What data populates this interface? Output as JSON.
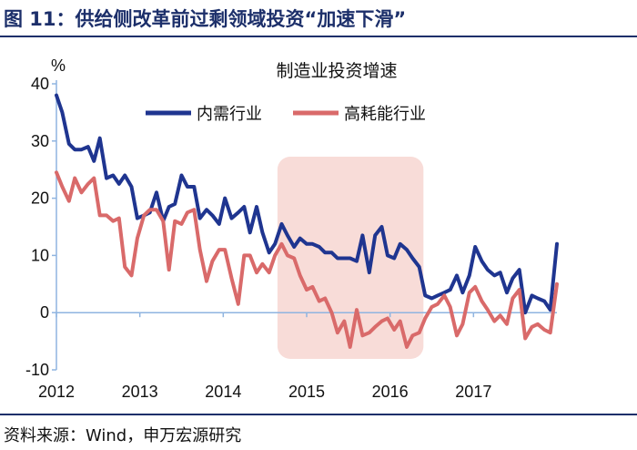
{
  "header": {
    "title": "图 11：供给侧改革前过剩领域投资“加速下滑”"
  },
  "footer": {
    "source": "资料来源：Wind，申万宏源研究"
  },
  "chart_data": {
    "type": "line",
    "title": "制造业投资增速",
    "ylabel": "%",
    "ylim": [
      -10,
      40
    ],
    "yticks": [
      -10,
      0,
      10,
      20,
      30,
      40
    ],
    "xlim": [
      2012.0,
      2018.0
    ],
    "xticks": [
      2012,
      2013,
      2014,
      2015,
      2016,
      2017
    ],
    "highlight_range": [
      2014.65,
      2016.4
    ],
    "legend_position": "top",
    "colors": {
      "series1": "#1f3590",
      "series2": "#d96a6a",
      "highlight": "#f8dcd8",
      "axis": "#8fb4e0"
    },
    "series": [
      {
        "name": "内需行业",
        "x": [
          2012.0,
          2012.07,
          2012.15,
          2012.22,
          2012.3,
          2012.38,
          2012.45,
          2012.52,
          2012.6,
          2012.68,
          2012.75,
          2012.82,
          2012.9,
          2012.97,
          2013.05,
          2013.12,
          2013.2,
          2013.28,
          2013.35,
          2013.42,
          2013.5,
          2013.57,
          2013.65,
          2013.72,
          2013.8,
          2013.87,
          2013.95,
          2014.02,
          2014.1,
          2014.18,
          2014.25,
          2014.32,
          2014.4,
          2014.47,
          2014.55,
          2014.62,
          2014.7,
          2014.77,
          2014.85,
          2014.92,
          2015.0,
          2015.07,
          2015.15,
          2015.22,
          2015.3,
          2015.37,
          2015.45,
          2015.52,
          2015.6,
          2015.67,
          2015.75,
          2015.82,
          2015.9,
          2015.97,
          2016.05,
          2016.12,
          2016.2,
          2016.27,
          2016.35,
          2016.42,
          2016.5,
          2016.57,
          2016.65,
          2016.72,
          2016.8,
          2016.87,
          2016.95,
          2017.02,
          2017.1,
          2017.17,
          2017.25,
          2017.32,
          2017.4,
          2017.47,
          2017.55,
          2017.62,
          2017.7,
          2017.77,
          2017.85,
          2017.92,
          2018.0
        ],
        "values": [
          38,
          35,
          29.5,
          28.5,
          28.5,
          29,
          26.5,
          30.5,
          23.5,
          24,
          22.5,
          24,
          22,
          16.5,
          17,
          17.5,
          21,
          16,
          18.5,
          19,
          24,
          22,
          22,
          16.5,
          18,
          17,
          15.5,
          20,
          16.5,
          17.5,
          18.5,
          14,
          18.5,
          14,
          10.5,
          12,
          15.5,
          13.5,
          11.5,
          13,
          12,
          12,
          11.5,
          10.5,
          10.5,
          9.5,
          9.5,
          9.5,
          9,
          13.5,
          7,
          13.5,
          15,
          10,
          9.5,
          12,
          11,
          9.5,
          8,
          3,
          2.5,
          3,
          3.5,
          4,
          6.5,
          3.5,
          6.5,
          11.5,
          9,
          7.5,
          6.5,
          7,
          3.5,
          6,
          7.5,
          0,
          3,
          2.5,
          2,
          0.5,
          12
        ]
      },
      {
        "name": "高耗能行业",
        "x": [
          2012.0,
          2012.07,
          2012.15,
          2012.22,
          2012.3,
          2012.38,
          2012.45,
          2012.52,
          2012.6,
          2012.68,
          2012.75,
          2012.82,
          2012.9,
          2012.97,
          2013.05,
          2013.12,
          2013.2,
          2013.28,
          2013.35,
          2013.42,
          2013.5,
          2013.57,
          2013.65,
          2013.72,
          2013.8,
          2013.87,
          2013.95,
          2014.02,
          2014.1,
          2014.18,
          2014.25,
          2014.32,
          2014.4,
          2014.47,
          2014.55,
          2014.62,
          2014.7,
          2014.77,
          2014.85,
          2014.92,
          2015.0,
          2015.07,
          2015.15,
          2015.22,
          2015.3,
          2015.37,
          2015.45,
          2015.52,
          2015.6,
          2015.67,
          2015.75,
          2015.82,
          2015.9,
          2015.97,
          2016.05,
          2016.12,
          2016.2,
          2016.27,
          2016.35,
          2016.42,
          2016.5,
          2016.57,
          2016.65,
          2016.72,
          2016.8,
          2016.87,
          2016.95,
          2017.02,
          2017.1,
          2017.17,
          2017.25,
          2017.32,
          2017.4,
          2017.47,
          2017.55,
          2017.62,
          2017.7,
          2017.77,
          2017.85,
          2017.92,
          2018.0
        ],
        "values": [
          24.5,
          22,
          19.5,
          23.5,
          21,
          22.5,
          23.5,
          17,
          17,
          16,
          16.5,
          8,
          6.5,
          13,
          17,
          18,
          18,
          16,
          7.5,
          16,
          15.5,
          17.5,
          18,
          11,
          5.5,
          9,
          11,
          11,
          6,
          1.5,
          10,
          10,
          7,
          8.5,
          7,
          10,
          12,
          10,
          9.5,
          6.5,
          4,
          4.5,
          2,
          2.5,
          0,
          -3.5,
          -1.5,
          -6,
          0.5,
          -4,
          -3.5,
          -2.5,
          -1.5,
          -1,
          -3,
          -1.5,
          -6,
          -4,
          -3.5,
          -1,
          1,
          1.5,
          3,
          1,
          -4,
          -2,
          3.5,
          4.5,
          2,
          0.5,
          -1.5,
          -0.5,
          -2,
          2.5,
          4,
          -4.5,
          -2.5,
          -2,
          -3,
          -3.5,
          5
        ]
      }
    ]
  }
}
